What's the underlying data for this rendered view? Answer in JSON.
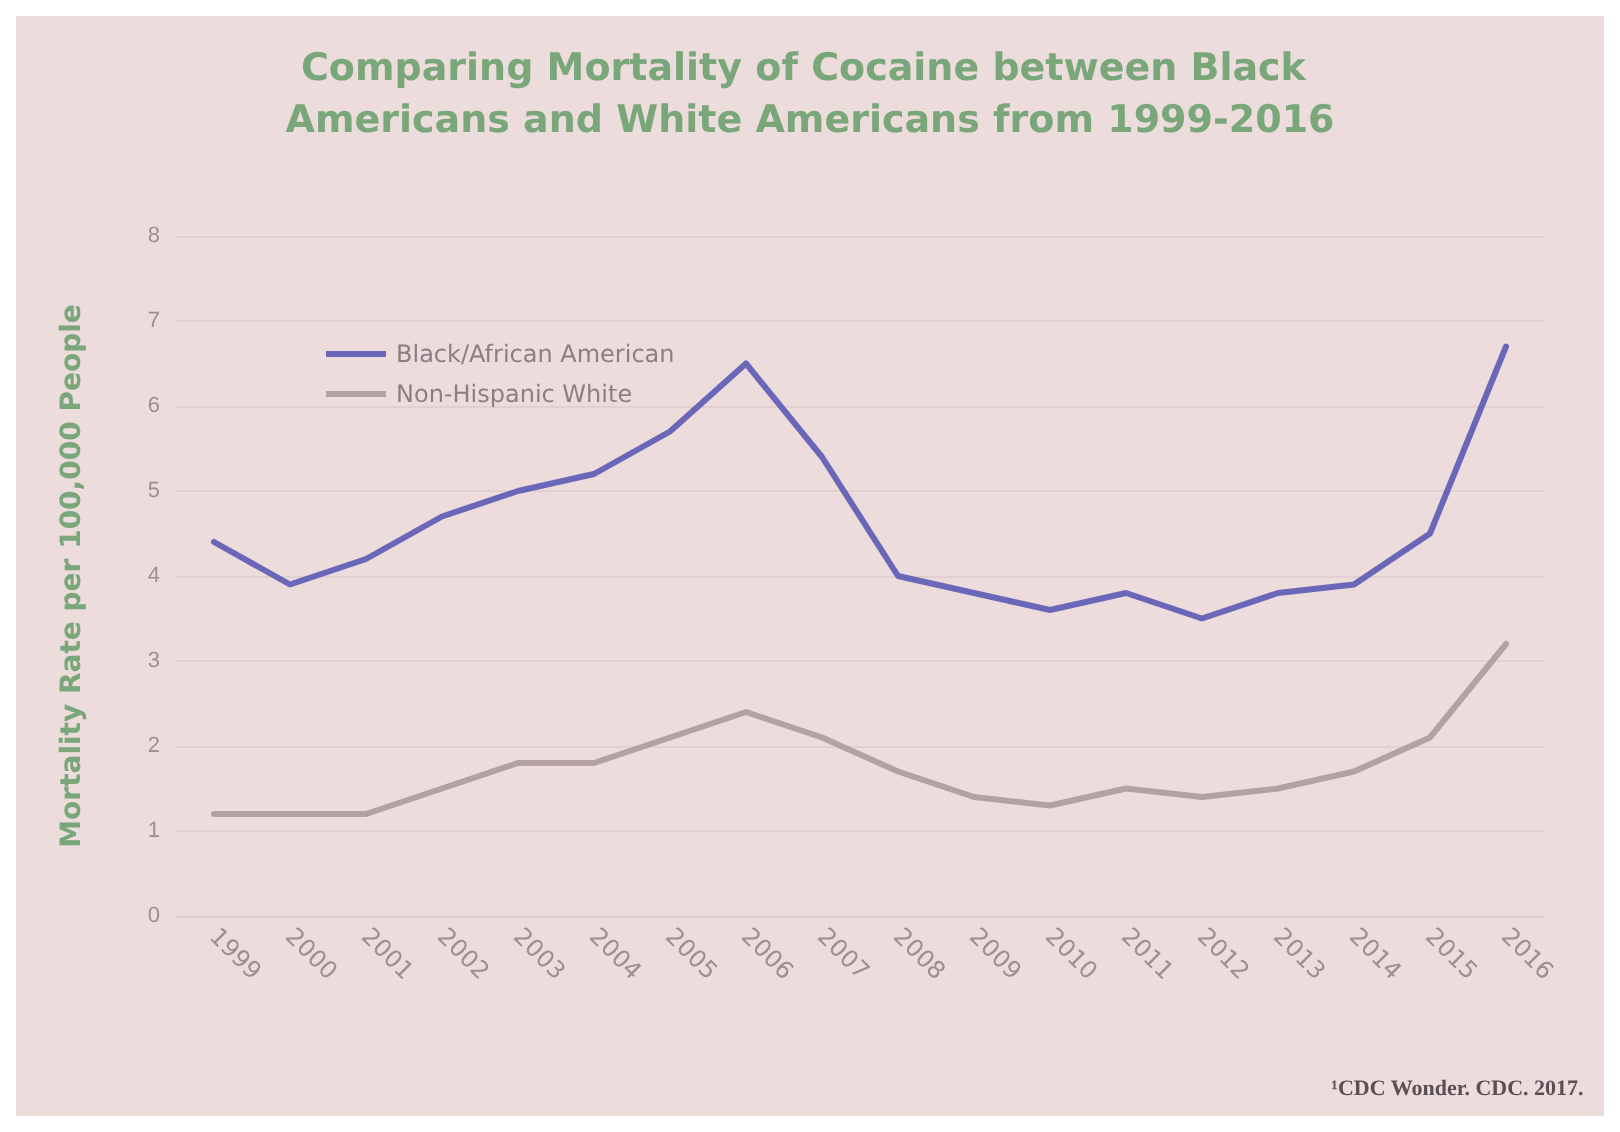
{
  "chart_data": {
    "type": "line",
    "title": "Comparing Mortality of Cocaine between Black Americans and White Americans from 1999-2016",
    "ylabel": "Mortality Rate per 100,000 People",
    "categories": [
      "1999",
      "2000",
      "2001",
      "2002",
      "2003",
      "2004",
      "2005",
      "2006",
      "2007",
      "2008",
      "2009",
      "2010",
      "2011",
      "2012",
      "2013",
      "2014",
      "2015",
      "2016"
    ],
    "series": [
      {
        "name": "Black/African American",
        "color": "#6a66b8",
        "values": [
          4.4,
          3.9,
          4.2,
          4.7,
          5.0,
          5.2,
          5.7,
          6.5,
          5.4,
          4.0,
          3.8,
          3.6,
          3.8,
          3.5,
          3.8,
          3.9,
          4.5,
          6.7
        ]
      },
      {
        "name": "Non-Hispanic White",
        "color": "#b4a2a2",
        "values": [
          1.2,
          1.2,
          1.2,
          1.5,
          1.8,
          1.8,
          2.1,
          2.4,
          2.1,
          1.7,
          1.4,
          1.3,
          1.5,
          1.4,
          1.5,
          1.7,
          2.1,
          3.2
        ]
      }
    ],
    "ylim": [
      0,
      8
    ],
    "yticks": [
      0,
      1,
      2,
      3,
      4,
      5,
      6,
      7,
      8
    ],
    "grid": "y",
    "legend": "top left",
    "marker": "none",
    "line_style": "solid",
    "annotations": [
      "¹CDC Wonder. CDC. 2017."
    ]
  }
}
